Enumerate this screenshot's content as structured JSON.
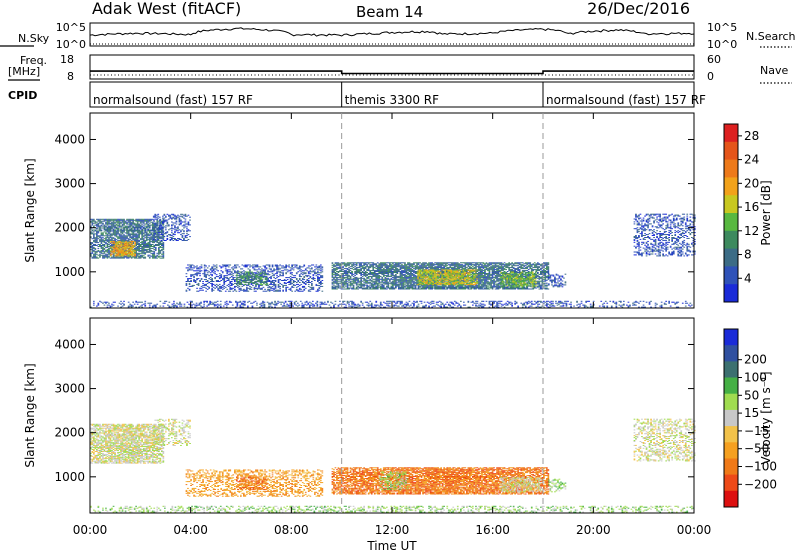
{
  "header": {
    "radar": "Adak West (fitACF)",
    "beam": "Beam 14",
    "date": "26/Dec/2016"
  },
  "left_labels": {
    "nsky": "N.Sky",
    "freq_line1": "Freq.",
    "freq_line2": "[MHz]",
    "cpid": "CPID"
  },
  "right_labels": {
    "nsearch": "N.Search",
    "nave": "Nave"
  },
  "nsky_axis": {
    "top": "10^5",
    "bottom": "10^0"
  },
  "nsearch_axis": {
    "top": "10^5",
    "bottom": "10^0"
  },
  "freq_axis": {
    "top": "18",
    "bottom": "8"
  },
  "nave_axis": {
    "top": "60",
    "bottom": "0"
  },
  "cpid_segments": [
    {
      "label": "normalsound (fast) 157 RF",
      "start": 0,
      "end": 10
    },
    {
      "label": "themis 3300 RF",
      "start": 10,
      "end": 18
    },
    {
      "label": "normalsound (fast) 157 RF",
      "start": 18,
      "end": 24
    }
  ],
  "colors": {
    "power": [
      "#1a2bd8",
      "#2f52b8",
      "#3c6c86",
      "#3d8a5e",
      "#58b840",
      "#c8c820",
      "#f2a21a",
      "#ee7a1a",
      "#e5551a",
      "#dd2020"
    ],
    "velocity": [
      "#dd1010",
      "#ee4a18",
      "#f07a18",
      "#f5a020",
      "#f2c24a",
      "#c8c8c8",
      "#a0dc50",
      "#45b045",
      "#3c7070",
      "#3050a0",
      "#1a2bd8"
    ]
  },
  "chart_data": [
    {
      "type": "line",
      "title": "N.Sky / N.Search",
      "y_scale": "log",
      "ylim": [
        1,
        100000
      ],
      "x": [
        0,
        2,
        4,
        5.9,
        8,
        10,
        11,
        13.4,
        14,
        16,
        18,
        19,
        21,
        22,
        24
      ],
      "series": [
        {
          "name": "N.Sky",
          "values": [
            300,
            800,
            400,
            8000,
            400,
            300,
            600,
            2000,
            500,
            800,
            6000,
            500,
            4000,
            600,
            800
          ]
        }
      ]
    },
    {
      "type": "line",
      "title": "Freq. [MHz] / Nave",
      "x": [
        0,
        10,
        10,
        18,
        18,
        24
      ],
      "series": [
        {
          "name": "Freq.",
          "values": [
            11.3,
            11.3,
            10.3,
            10.3,
            11.3,
            11.3
          ]
        },
        {
          "name": "Nave",
          "values": [
            10,
            10,
            10,
            10,
            10,
            10
          ]
        }
      ],
      "ylim": [
        8,
        18
      ]
    },
    {
      "type": "heatmap",
      "title": "Power",
      "xlabel": "Time UT",
      "ylabel": "Slant Range [km]",
      "xlim": [
        0,
        24
      ],
      "ylim": [
        180,
        4600
      ],
      "x_ticks": [
        "00:00",
        "04:00",
        "08:00",
        "12:00",
        "16:00",
        "20:00",
        "00:00"
      ],
      "x_tick_values": [
        0,
        4,
        8,
        12,
        16,
        20,
        24
      ],
      "y_ticks": [
        1000,
        2000,
        3000,
        4000
      ],
      "colorbar": {
        "label": "Power [dB]",
        "range": [
          0,
          30
        ],
        "ticks": [
          "4",
          "8",
          "12",
          "16",
          "20",
          "24",
          "28"
        ],
        "tick_values": [
          4,
          8,
          12,
          16,
          20,
          24,
          28
        ]
      },
      "regions": [
        {
          "t0": 0.0,
          "t1": 2.9,
          "r0": 1300,
          "r1": 2200,
          "level": 2,
          "density": 0.8
        },
        {
          "t0": 0.8,
          "t1": 1.8,
          "r0": 1350,
          "r1": 1700,
          "level": 6,
          "density": 0.8
        },
        {
          "t0": 2.5,
          "t1": 4.0,
          "r0": 1700,
          "r1": 2300,
          "level": 1,
          "density": 0.35
        },
        {
          "t0": 3.8,
          "t1": 9.2,
          "r0": 550,
          "r1": 1150,
          "level": 1,
          "density": 0.45
        },
        {
          "t0": 5.8,
          "t1": 7.0,
          "r0": 700,
          "r1": 1000,
          "level": 3,
          "density": 0.6
        },
        {
          "t0": 9.6,
          "t1": 18.2,
          "r0": 600,
          "r1": 1200,
          "level": 2,
          "density": 0.85
        },
        {
          "t0": 13.0,
          "t1": 15.4,
          "r0": 700,
          "r1": 1050,
          "level": 5,
          "density": 0.8
        },
        {
          "t0": 16.3,
          "t1": 17.7,
          "r0": 650,
          "r1": 1000,
          "level": 4,
          "density": 0.7
        },
        {
          "t0": 18.2,
          "t1": 18.9,
          "r0": 650,
          "r1": 950,
          "level": 1,
          "density": 0.4
        },
        {
          "t0": 21.6,
          "t1": 24.0,
          "r0": 1350,
          "r1": 2300,
          "level": 1,
          "density": 0.4
        },
        {
          "t0": 0.0,
          "t1": 24.0,
          "r0": 190,
          "r1": 340,
          "level": 1,
          "density": 0.35
        }
      ]
    },
    {
      "type": "heatmap",
      "title": "Velocity",
      "xlabel": "Time UT",
      "ylabel": "Slant Range [km]",
      "xlim": [
        0,
        24
      ],
      "ylim": [
        180,
        4600
      ],
      "x_ticks": [
        "00:00",
        "04:00",
        "08:00",
        "12:00",
        "16:00",
        "20:00",
        "00:00"
      ],
      "x_tick_values": [
        0,
        4,
        8,
        12,
        16,
        20,
        24
      ],
      "y_ticks": [
        1000,
        2000,
        3000,
        4000
      ],
      "colorbar": {
        "label": "Velocity [m s⁻¹]",
        "ticks": [
          "200",
          "100",
          "50",
          "15",
          "−15",
          "−50",
          "−100",
          "−200"
        ],
        "tick_values": [
          200,
          100,
          50,
          15,
          -15,
          -50,
          -100,
          -200
        ]
      },
      "regions": [
        {
          "t0": 0.0,
          "t1": 2.9,
          "r0": 1300,
          "r1": 2200,
          "level": 5,
          "density": 0.8
        },
        {
          "t0": 2.5,
          "t1": 4.0,
          "r0": 1700,
          "r1": 2300,
          "level": 5,
          "density": 0.35
        },
        {
          "t0": 3.8,
          "t1": 9.2,
          "r0": 550,
          "r1": 1150,
          "level": 3,
          "density": 0.45
        },
        {
          "t0": 5.8,
          "t1": 7.0,
          "r0": 700,
          "r1": 1000,
          "level": 2,
          "density": 0.6
        },
        {
          "t0": 9.6,
          "t1": 18.2,
          "r0": 600,
          "r1": 1200,
          "level": 2,
          "density": 0.85
        },
        {
          "t0": 11.5,
          "t1": 12.6,
          "r0": 700,
          "r1": 1100,
          "level": 6,
          "density": 0.5
        },
        {
          "t0": 16.3,
          "t1": 17.9,
          "r0": 650,
          "r1": 1000,
          "level": 5,
          "density": 0.7
        },
        {
          "t0": 18.2,
          "t1": 18.9,
          "r0": 650,
          "r1": 950,
          "level": 6,
          "density": 0.4
        },
        {
          "t0": 21.6,
          "t1": 24.0,
          "r0": 1350,
          "r1": 2300,
          "level": 5,
          "density": 0.4
        },
        {
          "t0": 0.0,
          "t1": 24.0,
          "r0": 190,
          "r1": 340,
          "level": 6,
          "density": 0.35
        }
      ]
    }
  ]
}
